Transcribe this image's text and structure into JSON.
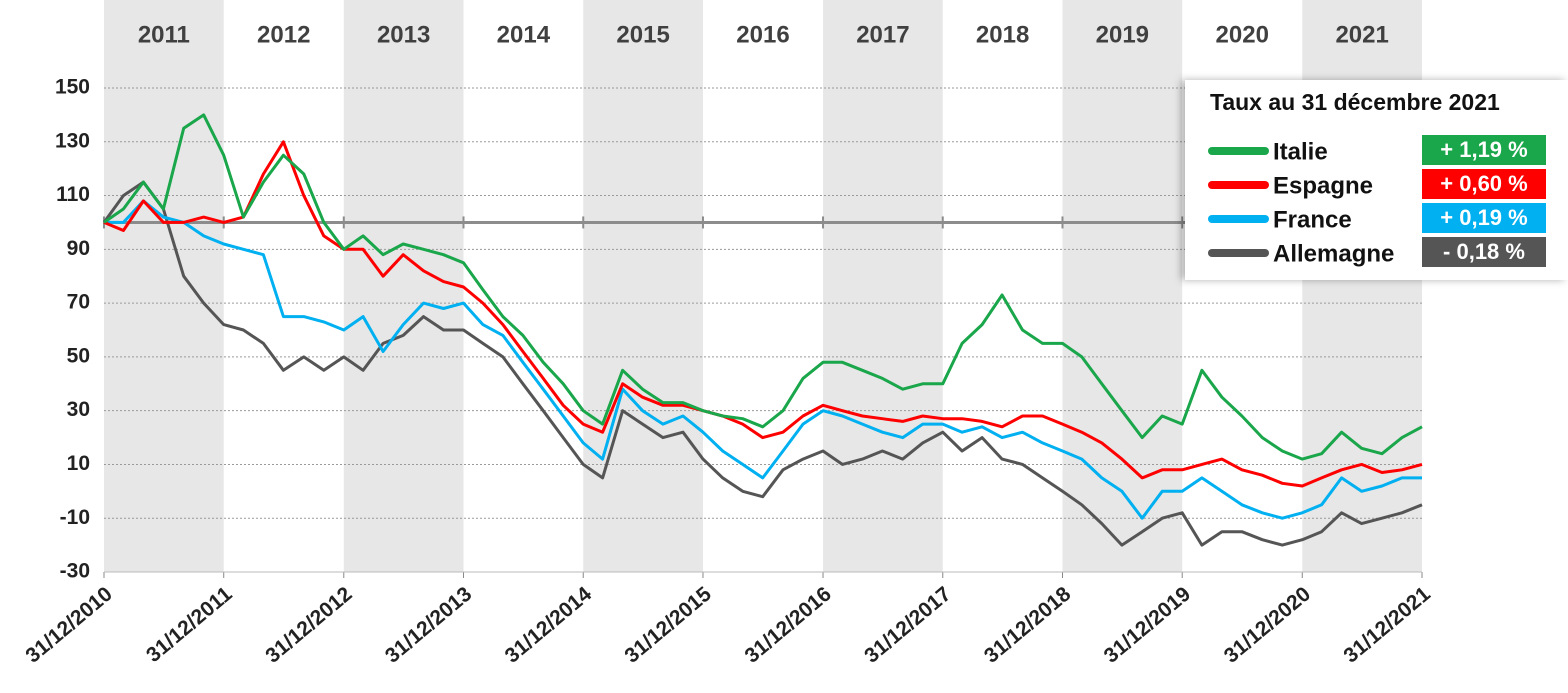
{
  "chart_data": {
    "type": "line",
    "year_labels": [
      "2011",
      "2012",
      "2013",
      "2014",
      "2015",
      "2016",
      "2017",
      "2018",
      "2019",
      "2020",
      "2021"
    ],
    "xlim": [
      "31/12/2010",
      "31/12/2021"
    ],
    "xticks": [
      "31/12/2010",
      "31/12/2011",
      "31/12/2012",
      "31/12/2013",
      "31/12/2014",
      "31/12/2015",
      "31/12/2016",
      "31/12/2017",
      "31/12/2018",
      "31/12/2019",
      "31/12/2020",
      "31/12/2021"
    ],
    "ylim": [
      -30,
      150
    ],
    "yticks": [
      -30,
      -10,
      10,
      30,
      50,
      70,
      90,
      110,
      130,
      150
    ],
    "grid": true,
    "reference_line": 100,
    "legend_title": "Taux au 31 décembre 2021",
    "x": [
      "31/12/2010",
      "28/02/2011",
      "30/04/2011",
      "30/06/2011",
      "31/08/2011",
      "31/10/2011",
      "31/12/2011",
      "29/02/2012",
      "30/04/2012",
      "30/06/2012",
      "31/08/2012",
      "31/10/2012",
      "31/12/2012",
      "28/02/2013",
      "30/04/2013",
      "30/06/2013",
      "31/08/2013",
      "31/10/2013",
      "31/12/2013",
      "28/02/2014",
      "30/04/2014",
      "30/06/2014",
      "31/08/2014",
      "31/10/2014",
      "31/12/2014",
      "28/02/2015",
      "30/04/2015",
      "30/06/2015",
      "31/08/2015",
      "31/10/2015",
      "31/12/2015",
      "29/02/2016",
      "30/04/2016",
      "30/06/2016",
      "31/08/2016",
      "31/10/2016",
      "31/12/2016",
      "28/02/2017",
      "30/04/2017",
      "30/06/2017",
      "31/08/2017",
      "31/10/2017",
      "31/12/2017",
      "28/02/2018",
      "30/04/2018",
      "30/06/2018",
      "31/08/2018",
      "31/10/2018",
      "31/12/2018",
      "28/02/2019",
      "30/04/2019",
      "30/06/2019",
      "31/08/2019",
      "31/10/2019",
      "31/12/2019",
      "29/02/2020",
      "30/04/2020",
      "30/06/2020",
      "31/08/2020",
      "31/10/2020",
      "31/12/2020",
      "28/02/2021",
      "30/04/2021",
      "30/06/2021",
      "31/08/2021",
      "31/10/2021",
      "31/12/2021"
    ],
    "series": [
      {
        "name": "Italie",
        "color": "#1aa64a",
        "rate_label": "+ 1,19 %",
        "values": [
          100,
          105,
          115,
          105,
          135,
          140,
          125,
          102,
          115,
          125,
          118,
          100,
          90,
          95,
          88,
          92,
          90,
          88,
          85,
          75,
          65,
          58,
          48,
          40,
          30,
          25,
          45,
          38,
          33,
          33,
          30,
          28,
          27,
          24,
          30,
          42,
          48,
          48,
          45,
          42,
          38,
          40,
          40,
          55,
          62,
          73,
          60,
          55,
          55,
          50,
          40,
          30,
          20,
          28,
          25,
          45,
          35,
          28,
          20,
          15,
          12,
          14,
          22,
          16,
          14,
          20,
          24
        ]
      },
      {
        "name": "Espagne",
        "color": "#ff0000",
        "rate_label": "+ 0,60 %",
        "values": [
          100,
          97,
          108,
          100,
          100,
          102,
          100,
          102,
          118,
          130,
          110,
          95,
          90,
          90,
          80,
          88,
          82,
          78,
          76,
          70,
          62,
          52,
          42,
          32,
          25,
          22,
          40,
          35,
          32,
          32,
          30,
          28,
          25,
          20,
          22,
          28,
          32,
          30,
          28,
          27,
          26,
          28,
          27,
          27,
          26,
          24,
          28,
          28,
          25,
          22,
          18,
          12,
          5,
          8,
          8,
          10,
          12,
          8,
          6,
          3,
          2,
          5,
          8,
          10,
          7,
          8,
          10
        ]
      },
      {
        "name": "France",
        "color": "#00b0f0",
        "rate_label": "+ 0,19 %",
        "values": [
          100,
          100,
          108,
          102,
          100,
          95,
          92,
          90,
          88,
          65,
          65,
          63,
          60,
          65,
          52,
          62,
          70,
          68,
          70,
          62,
          58,
          48,
          38,
          28,
          18,
          12,
          38,
          30,
          25,
          28,
          22,
          15,
          10,
          5,
          15,
          25,
          30,
          28,
          25,
          22,
          20,
          25,
          25,
          22,
          24,
          20,
          22,
          18,
          15,
          12,
          5,
          0,
          -10,
          0,
          0,
          5,
          0,
          -5,
          -8,
          -10,
          -8,
          -5,
          5,
          0,
          2,
          5,
          5
        ]
      },
      {
        "name": "Allemagne",
        "color": "#555555",
        "rate_label": "- 0,18 %",
        "values": [
          100,
          110,
          115,
          105,
          80,
          70,
          62,
          60,
          55,
          45,
          50,
          45,
          50,
          45,
          55,
          58,
          65,
          60,
          60,
          55,
          50,
          40,
          30,
          20,
          10,
          5,
          30,
          25,
          20,
          22,
          12,
          5,
          0,
          -2,
          8,
          12,
          15,
          10,
          12,
          15,
          12,
          18,
          22,
          15,
          20,
          12,
          10,
          5,
          0,
          -5,
          -12,
          -20,
          -15,
          -10,
          -8,
          -20,
          -15,
          -15,
          -18,
          -20,
          -18,
          -15,
          -8,
          -12,
          -10,
          -8,
          -5
        ]
      }
    ]
  }
}
